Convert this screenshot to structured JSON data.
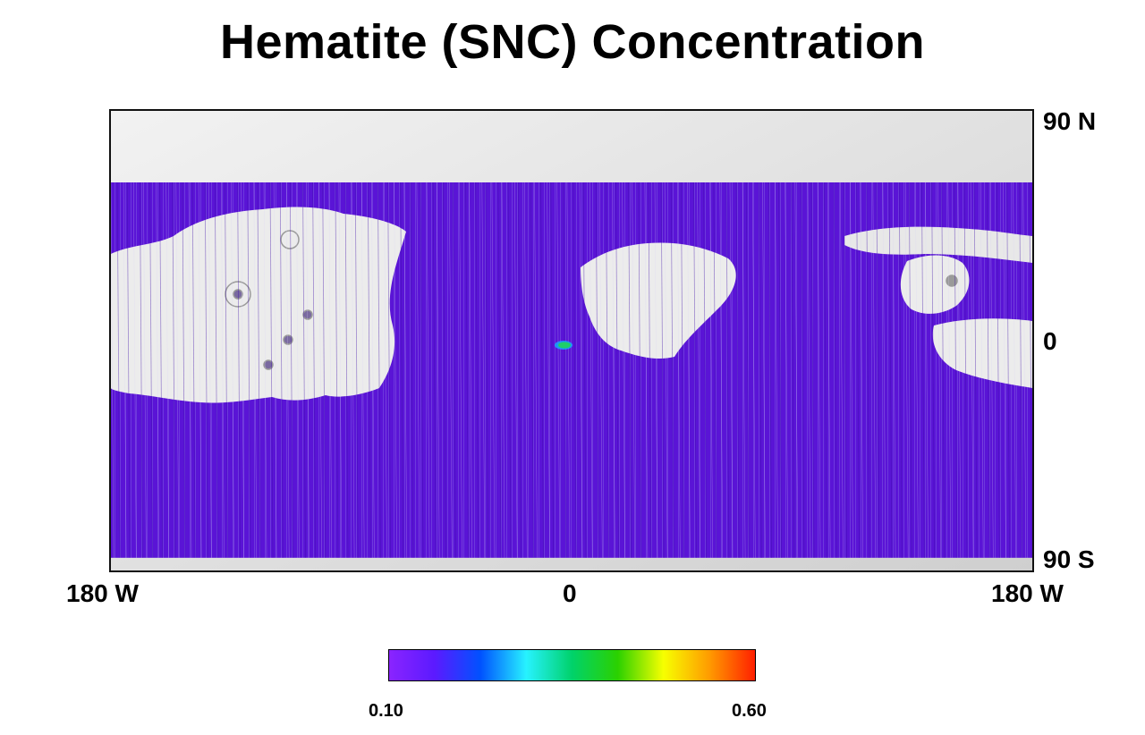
{
  "title": "Hematite (SNC) Concentration",
  "map": {
    "lat_labels": {
      "north": "90 N",
      "equator": "0",
      "south": "90 S"
    },
    "lon_labels": {
      "west": "180 W",
      "center": "0",
      "east": "180 W"
    },
    "colors": {
      "terrain_background": "#dcdcdc",
      "data_coverage": "#5a14d6",
      "data_coverage_dark": "#3c0ca8",
      "hotspot_high": "#1fcf6a",
      "hotspot_mid": "#10b0ff"
    },
    "data_coverage_lat_range_deg": [
      -85,
      62
    ]
  },
  "colorbar": {
    "min_label": "0.10",
    "max_label": "0.60",
    "min": 0.1,
    "max": 0.6,
    "stops": [
      "#8a24ff",
      "#5b1aff",
      "#0052ff",
      "#27f2ff",
      "#00d26a",
      "#2bd100",
      "#f7ff00",
      "#ff9b00",
      "#ff2000"
    ]
  }
}
